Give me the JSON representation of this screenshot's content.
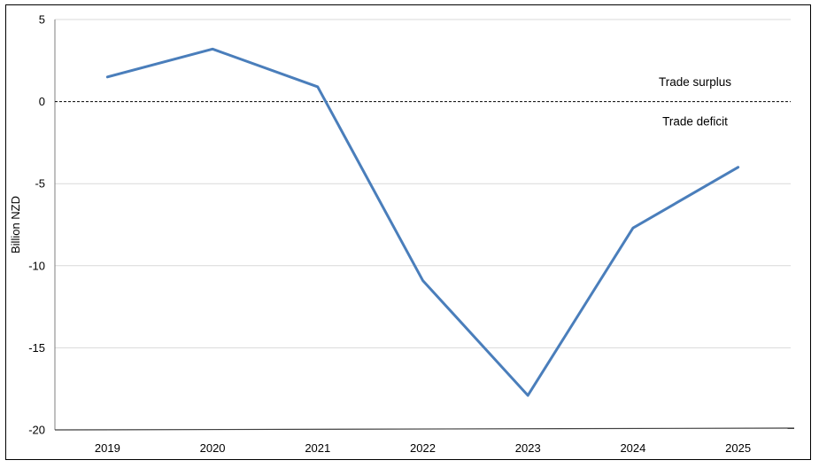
{
  "chart_data": {
    "type": "line",
    "title": "",
    "xlabel": "",
    "ylabel": "Billion NZD",
    "categories": [
      "2019",
      "2020",
      "2021",
      "2022",
      "2023",
      "2024",
      "2025"
    ],
    "series": [
      {
        "values": [
          1.5,
          3.2,
          0.9,
          -10.9,
          -17.9,
          -7.7,
          -4.0
        ],
        "color": "#4a7ebb"
      }
    ],
    "ylim": [
      -20,
      5
    ],
    "yticks": [
      5,
      0,
      -5,
      -10,
      -15,
      -20
    ],
    "ytick_labels": [
      "5",
      "0",
      "-5",
      "-10",
      "-15",
      "-20"
    ],
    "grid": true,
    "reference_line": {
      "y": 0,
      "style": "dashed"
    },
    "annotations": [
      {
        "text": "Trade surplus",
        "y": 1.2
      },
      {
        "text": "Trade deficit",
        "y": -1.2
      }
    ]
  }
}
